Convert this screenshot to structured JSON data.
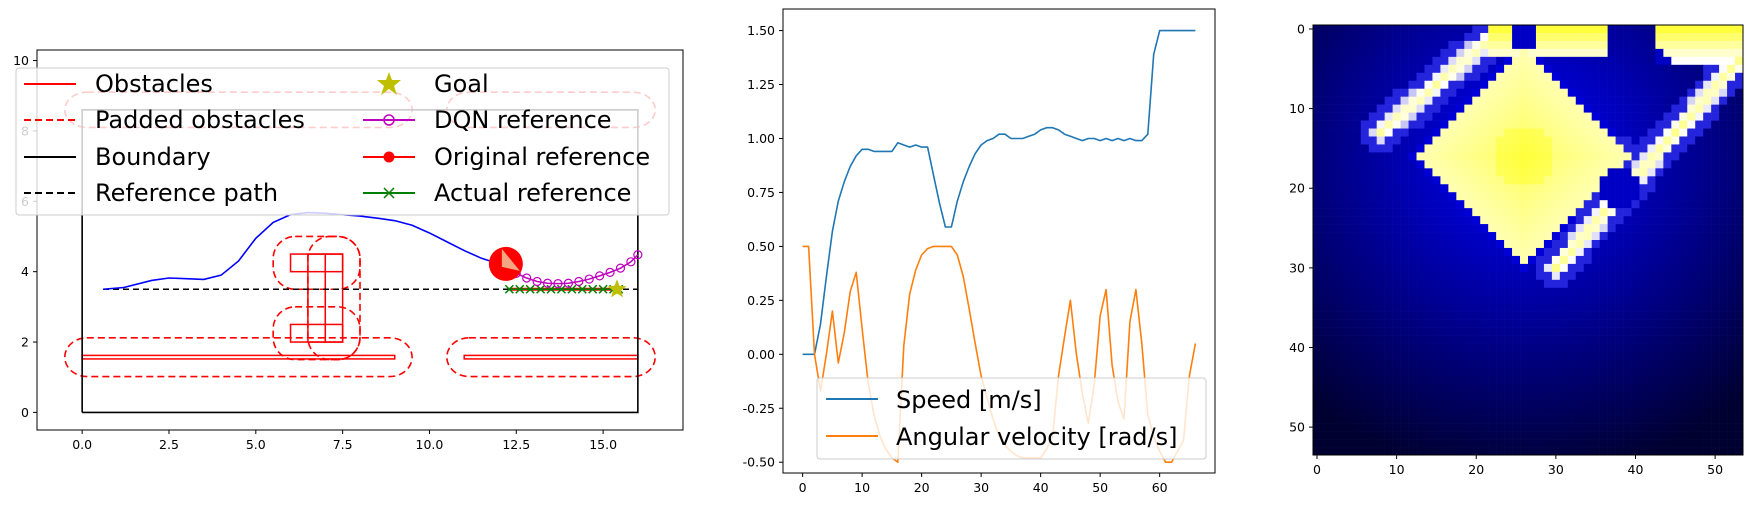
{
  "chart_data": [
    {
      "type": "line",
      "title": "",
      "xlim": [
        -1.3,
        17.3
      ],
      "ylim": [
        -0.5,
        10.3
      ],
      "x_ticks": [
        "0.0",
        "2.5",
        "5.0",
        "7.5",
        "10.0",
        "12.5",
        "15.0"
      ],
      "y_ticks": [
        "0",
        "2",
        "4",
        "6",
        "8",
        "10"
      ],
      "legend": {
        "placement": "top",
        "entries": [
          "Obstacles",
          "Padded obstacles",
          "Boundary",
          "Reference path",
          "Goal",
          "DQN reference",
          "Original reference",
          "Actual reference"
        ]
      },
      "boundary": [
        [
          0,
          0
        ],
        [
          16,
          0
        ],
        [
          16,
          8.6
        ],
        [
          0,
          8.6
        ],
        [
          0,
          0
        ]
      ],
      "reference_path": {
        "x": [
          0.6,
          16.0
        ],
        "y": [
          3.5,
          3.5
        ]
      },
      "trajectory": {
        "x": [
          0.6,
          1.2,
          2.0,
          2.5,
          3.0,
          3.5,
          4.0,
          4.5,
          5.0,
          5.5,
          6.0,
          6.5,
          7.0,
          7.5,
          8.0,
          8.5,
          9.0,
          9.5,
          10.0,
          10.5,
          11.0,
          11.5,
          12.0
        ],
        "y": [
          3.5,
          3.55,
          3.75,
          3.82,
          3.8,
          3.78,
          3.9,
          4.3,
          4.95,
          5.4,
          5.62,
          5.68,
          5.66,
          5.62,
          5.58,
          5.52,
          5.45,
          5.32,
          5.1,
          4.85,
          4.6,
          4.38,
          4.22
        ]
      },
      "robot": {
        "x": 12.2,
        "y": 4.22,
        "radius": 0.45
      },
      "goal": {
        "x": 15.4,
        "y": 3.5
      },
      "dqn_reference": {
        "x": [
          12.5,
          12.8,
          13.1,
          13.4,
          13.7,
          14.0,
          14.3,
          14.6,
          14.9,
          15.2,
          15.5,
          15.8,
          16.0
        ],
        "y": [
          3.95,
          3.82,
          3.72,
          3.67,
          3.66,
          3.67,
          3.72,
          3.79,
          3.88,
          3.98,
          4.1,
          4.28,
          4.48
        ]
      },
      "actual_reference": {
        "x": [
          12.3,
          12.6,
          12.9,
          13.2,
          13.5,
          13.8,
          14.1,
          14.4,
          14.7,
          15.0,
          15.3,
          15.45
        ],
        "y": [
          3.5,
          3.5,
          3.5,
          3.5,
          3.5,
          3.5,
          3.5,
          3.5,
          3.5,
          3.5,
          3.5,
          3.5
        ]
      },
      "obstacles": [
        {
          "x": 0.0,
          "y": 1.52,
          "w": 9.0,
          "h": 0.1
        },
        {
          "x": 11.0,
          "y": 1.52,
          "w": 5.0,
          "h": 0.1
        },
        {
          "x": 6.0,
          "y": 4.0,
          "w": 1.5,
          "h": 0.5
        },
        {
          "x": 6.0,
          "y": 2.0,
          "w": 1.5,
          "h": 0.5
        },
        {
          "x": 6.5,
          "y": 2.0,
          "w": 0.5,
          "h": 2.5
        },
        {
          "x": 7.0,
          "y": 2.0,
          "w": 0.5,
          "h": 2.5
        }
      ],
      "padded_obstacles": [
        {
          "x": -0.5,
          "y": 1.02,
          "w": 10.0,
          "h": 1.1
        },
        {
          "x": 10.5,
          "y": 1.02,
          "w": 6.0,
          "h": 1.1
        },
        {
          "x": 5.5,
          "y": 3.5,
          "w": 2.5,
          "h": 1.5
        },
        {
          "x": 5.5,
          "y": 1.5,
          "w": 2.5,
          "h": 1.5
        },
        {
          "x": 6.5,
          "y": 1.5,
          "w": 1.5,
          "h": 3.5
        },
        {
          "x": -0.5,
          "y": 8.1,
          "w": 10.0,
          "h": 1.0
        },
        {
          "x": 10.5,
          "y": 8.1,
          "w": 6.0,
          "h": 1.0
        }
      ]
    },
    {
      "type": "line",
      "title": "",
      "xlim": [
        -3.3,
        69.3
      ],
      "ylim": [
        -0.55,
        1.6
      ],
      "x_ticks": [
        "0",
        "10",
        "20",
        "30",
        "40",
        "50",
        "60"
      ],
      "y_ticks": [
        "-0.50",
        "-0.25",
        "0.00",
        "0.25",
        "0.50",
        "0.75",
        "1.00",
        "1.25",
        "1.50"
      ],
      "legend": {
        "placement": "bottom",
        "entries": [
          "Speed [m/s]",
          "Angular velocity [rad/s]"
        ]
      },
      "series": [
        {
          "name": "Speed [m/s]",
          "color": "#1f77b4",
          "x": [
            0,
            1,
            2,
            3,
            4,
            5,
            6,
            7,
            8,
            9,
            10,
            11,
            12,
            13,
            14,
            15,
            16,
            17,
            18,
            19,
            20,
            21,
            22,
            23,
            24,
            25,
            26,
            27,
            28,
            29,
            30,
            31,
            32,
            33,
            34,
            35,
            36,
            37,
            38,
            39,
            40,
            41,
            42,
            43,
            44,
            45,
            46,
            47,
            48,
            49,
            50,
            51,
            52,
            53,
            54,
            55,
            56,
            57,
            58,
            59,
            60,
            61,
            62,
            63,
            64,
            65,
            66
          ],
          "values": [
            0.0,
            0.0,
            0.0,
            0.14,
            0.36,
            0.57,
            0.71,
            0.8,
            0.87,
            0.92,
            0.95,
            0.95,
            0.94,
            0.94,
            0.94,
            0.94,
            0.98,
            0.97,
            0.96,
            0.97,
            0.96,
            0.96,
            0.83,
            0.7,
            0.59,
            0.59,
            0.71,
            0.8,
            0.87,
            0.93,
            0.97,
            0.99,
            1.0,
            1.02,
            1.02,
            1.0,
            1.0,
            1.0,
            1.01,
            1.02,
            1.04,
            1.05,
            1.05,
            1.04,
            1.02,
            1.01,
            1.0,
            0.99,
            1.0,
            1.0,
            0.99,
            1.0,
            0.99,
            1.0,
            0.99,
            1.0,
            0.99,
            0.99,
            1.02,
            1.39,
            1.5,
            1.5,
            1.5,
            1.5,
            1.5,
            1.5,
            1.5
          ]
        },
        {
          "name": "Angular velocity [rad/s]",
          "color": "#ff7f0e",
          "x": [
            0,
            1,
            2,
            3,
            4,
            5,
            6,
            7,
            8,
            9,
            10,
            11,
            12,
            13,
            14,
            15,
            16,
            17,
            18,
            19,
            20,
            21,
            22,
            23,
            24,
            25,
            26,
            27,
            28,
            29,
            30,
            31,
            32,
            33,
            34,
            35,
            36,
            37,
            38,
            39,
            40,
            41,
            42,
            43,
            44,
            45,
            46,
            47,
            48,
            49,
            50,
            51,
            52,
            53,
            54,
            55,
            56,
            57,
            58,
            59,
            60,
            61,
            62,
            63,
            64,
            65,
            66
          ],
          "values": [
            0.5,
            0.5,
            0.0,
            -0.17,
            0.0,
            0.2,
            -0.04,
            0.1,
            0.29,
            0.38,
            0.12,
            -0.13,
            -0.28,
            -0.38,
            -0.44,
            -0.48,
            -0.5,
            0.04,
            0.28,
            0.39,
            0.46,
            0.49,
            0.5,
            0.5,
            0.5,
            0.5,
            0.46,
            0.36,
            0.21,
            0.05,
            -0.1,
            -0.2,
            -0.3,
            -0.38,
            -0.42,
            -0.45,
            -0.47,
            -0.48,
            -0.48,
            -0.48,
            -0.48,
            -0.44,
            -0.38,
            -0.1,
            0.08,
            0.25,
            0.0,
            -0.18,
            -0.32,
            -0.14,
            0.18,
            0.3,
            -0.05,
            -0.22,
            -0.3,
            0.15,
            0.3,
            0.05,
            -0.28,
            -0.38,
            -0.45,
            -0.5,
            -0.5,
            -0.45,
            -0.4,
            -0.1,
            0.05
          ]
        }
      ]
    },
    {
      "type": "heatmap",
      "title": "",
      "shape": [
        54,
        54
      ],
      "colormap": "black-blue-white-yellow",
      "x_ticks": [
        "0",
        "10",
        "20",
        "30",
        "40",
        "50"
      ],
      "y_ticks": [
        "0",
        "10",
        "20",
        "30",
        "40",
        "50"
      ],
      "center": [
        26,
        16
      ],
      "regions": [
        {
          "kind": "diamond",
          "cx": 26,
          "cy": 16,
          "r": 13,
          "value": 0.96
        },
        {
          "kind": "band",
          "from": [
            8,
            13
          ],
          "to": [
            22,
            1
          ],
          "width": 1.3,
          "value": 0.9
        },
        {
          "kind": "band",
          "from": [
            30,
            30
          ],
          "to": [
            53,
            4
          ],
          "width": 1.2,
          "value": 0.92
        },
        {
          "kind": "band",
          "from": [
            27,
            25
          ],
          "to": [
            38,
            16
          ],
          "width": 1.1,
          "value": 0.85
        },
        {
          "kind": "rect",
          "x0": 43,
          "y0": 0,
          "x1": 53,
          "y1": 4,
          "value": 1.0
        },
        {
          "kind": "rect",
          "x0": 22,
          "y0": 0,
          "x1": 36,
          "y1": 3,
          "value": 1.0
        },
        {
          "kind": "void",
          "cx": 41,
          "cy": 6,
          "r": 4
        },
        {
          "kind": "void",
          "cx": 38,
          "cy": 20,
          "r": 2.6
        },
        {
          "kind": "void",
          "cx": 26,
          "cy": 1,
          "r": 1.8
        }
      ]
    }
  ]
}
